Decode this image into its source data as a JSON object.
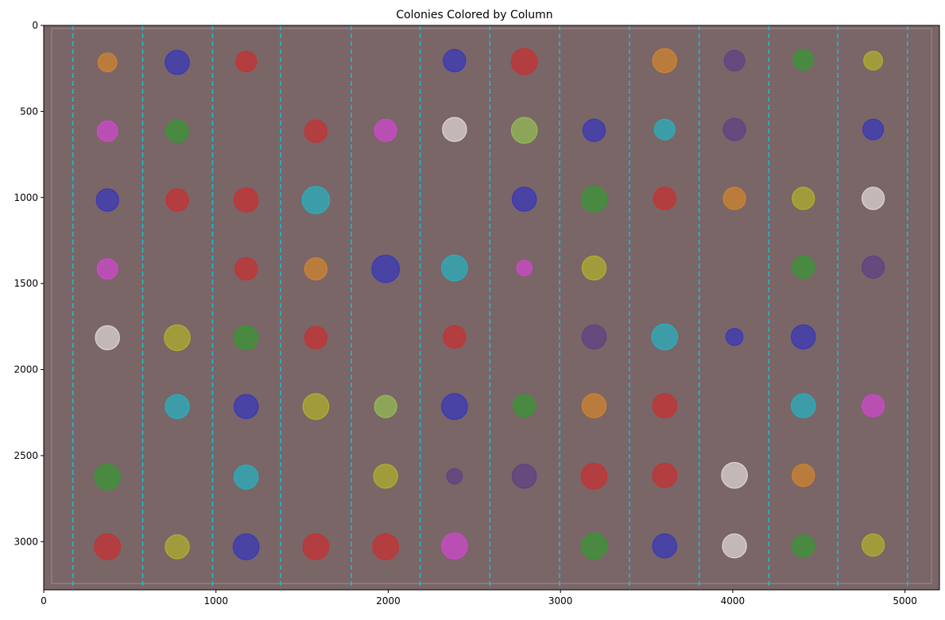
{
  "chart_data": {
    "type": "scatter",
    "title": "Colonies Colored by Column",
    "xlabel": "",
    "ylabel": "",
    "xlim": [
      0,
      5200
    ],
    "ylim": [
      3280,
      0
    ],
    "x_ticks": [
      0,
      1000,
      2000,
      3000,
      4000,
      5000
    ],
    "y_ticks": [
      0,
      500,
      1000,
      1500,
      2000,
      2500,
      3000
    ],
    "y_axis_inverted": true,
    "grid": false,
    "legend": "none",
    "colors": {
      "background_plate": "#7a6567",
      "plate_border": "#a49494",
      "divider_line": "#17becf",
      "red": "#d62728",
      "blue": "#2b2fc9",
      "green": "#2ca02c",
      "olive": "#bcbd22",
      "cyan": "#17becf",
      "orange": "#e08a22",
      "magenta": "#e042e0",
      "purple": "#5a3a8a",
      "lightgreen": "#9acd50",
      "white": "#f2eaea"
    },
    "column_dividers": [
      170,
      575,
      980,
      1375,
      1785,
      2185,
      2590,
      2995,
      3400,
      3805,
      4210,
      4610,
      5015
    ],
    "colonies": [
      {
        "x": 370,
        "y": 215,
        "r": 55,
        "color": "orange"
      },
      {
        "x": 775,
        "y": 215,
        "r": 70,
        "color": "blue"
      },
      {
        "x": 1175,
        "y": 210,
        "r": 60,
        "color": "red"
      },
      {
        "x": 2385,
        "y": 205,
        "r": 65,
        "color": "blue"
      },
      {
        "x": 2790,
        "y": 210,
        "r": 75,
        "color": "red"
      },
      {
        "x": 3605,
        "y": 205,
        "r": 70,
        "color": "orange"
      },
      {
        "x": 4010,
        "y": 205,
        "r": 60,
        "color": "purple"
      },
      {
        "x": 4410,
        "y": 200,
        "r": 60,
        "color": "green"
      },
      {
        "x": 4815,
        "y": 205,
        "r": 55,
        "color": "olive"
      },
      {
        "x": 370,
        "y": 615,
        "r": 60,
        "color": "magenta"
      },
      {
        "x": 775,
        "y": 615,
        "r": 65,
        "color": "green"
      },
      {
        "x": 1580,
        "y": 615,
        "r": 65,
        "color": "red"
      },
      {
        "x": 1985,
        "y": 610,
        "r": 65,
        "color": "magenta"
      },
      {
        "x": 2385,
        "y": 605,
        "r": 70,
        "color": "white"
      },
      {
        "x": 2790,
        "y": 610,
        "r": 75,
        "color": "lightgreen"
      },
      {
        "x": 3195,
        "y": 610,
        "r": 65,
        "color": "blue"
      },
      {
        "x": 3605,
        "y": 605,
        "r": 60,
        "color": "cyan"
      },
      {
        "x": 4010,
        "y": 605,
        "r": 65,
        "color": "purple"
      },
      {
        "x": 4815,
        "y": 605,
        "r": 60,
        "color": "blue"
      },
      {
        "x": 370,
        "y": 1015,
        "r": 65,
        "color": "blue"
      },
      {
        "x": 775,
        "y": 1015,
        "r": 65,
        "color": "red"
      },
      {
        "x": 1175,
        "y": 1015,
        "r": 70,
        "color": "red"
      },
      {
        "x": 1580,
        "y": 1015,
        "r": 80,
        "color": "cyan"
      },
      {
        "x": 2790,
        "y": 1010,
        "r": 70,
        "color": "blue"
      },
      {
        "x": 3195,
        "y": 1010,
        "r": 75,
        "color": "green"
      },
      {
        "x": 3605,
        "y": 1005,
        "r": 65,
        "color": "red"
      },
      {
        "x": 4010,
        "y": 1005,
        "r": 65,
        "color": "orange"
      },
      {
        "x": 4410,
        "y": 1005,
        "r": 65,
        "color": "olive"
      },
      {
        "x": 4815,
        "y": 1005,
        "r": 65,
        "color": "white"
      },
      {
        "x": 370,
        "y": 1415,
        "r": 60,
        "color": "magenta"
      },
      {
        "x": 1175,
        "y": 1415,
        "r": 65,
        "color": "red"
      },
      {
        "x": 1580,
        "y": 1415,
        "r": 65,
        "color": "orange"
      },
      {
        "x": 1985,
        "y": 1415,
        "r": 80,
        "color": "blue"
      },
      {
        "x": 2385,
        "y": 1410,
        "r": 75,
        "color": "cyan"
      },
      {
        "x": 2790,
        "y": 1410,
        "r": 45,
        "color": "magenta"
      },
      {
        "x": 3195,
        "y": 1410,
        "r": 70,
        "color": "olive"
      },
      {
        "x": 4410,
        "y": 1405,
        "r": 65,
        "color": "green"
      },
      {
        "x": 4815,
        "y": 1405,
        "r": 65,
        "color": "purple"
      },
      {
        "x": 370,
        "y": 1815,
        "r": 70,
        "color": "white"
      },
      {
        "x": 775,
        "y": 1815,
        "r": 75,
        "color": "olive"
      },
      {
        "x": 1175,
        "y": 1815,
        "r": 70,
        "color": "green"
      },
      {
        "x": 1580,
        "y": 1815,
        "r": 65,
        "color": "red"
      },
      {
        "x": 2385,
        "y": 1810,
        "r": 65,
        "color": "red"
      },
      {
        "x": 3195,
        "y": 1810,
        "r": 70,
        "color": "purple"
      },
      {
        "x": 3605,
        "y": 1810,
        "r": 75,
        "color": "cyan"
      },
      {
        "x": 4010,
        "y": 1810,
        "r": 50,
        "color": "blue"
      },
      {
        "x": 4410,
        "y": 1810,
        "r": 70,
        "color": "blue"
      },
      {
        "x": 775,
        "y": 2215,
        "r": 70,
        "color": "cyan"
      },
      {
        "x": 1175,
        "y": 2215,
        "r": 70,
        "color": "blue"
      },
      {
        "x": 1580,
        "y": 2215,
        "r": 75,
        "color": "olive"
      },
      {
        "x": 1985,
        "y": 2215,
        "r": 65,
        "color": "lightgreen"
      },
      {
        "x": 2385,
        "y": 2215,
        "r": 75,
        "color": "blue"
      },
      {
        "x": 2790,
        "y": 2210,
        "r": 65,
        "color": "green"
      },
      {
        "x": 3195,
        "y": 2210,
        "r": 70,
        "color": "orange"
      },
      {
        "x": 3605,
        "y": 2210,
        "r": 70,
        "color": "red"
      },
      {
        "x": 4410,
        "y": 2210,
        "r": 70,
        "color": "cyan"
      },
      {
        "x": 4815,
        "y": 2210,
        "r": 65,
        "color": "magenta"
      },
      {
        "x": 370,
        "y": 2625,
        "r": 75,
        "color": "green"
      },
      {
        "x": 1175,
        "y": 2625,
        "r": 70,
        "color": "cyan"
      },
      {
        "x": 1985,
        "y": 2620,
        "r": 70,
        "color": "olive"
      },
      {
        "x": 2385,
        "y": 2620,
        "r": 45,
        "color": "purple"
      },
      {
        "x": 2790,
        "y": 2620,
        "r": 70,
        "color": "purple"
      },
      {
        "x": 3195,
        "y": 2620,
        "r": 75,
        "color": "red"
      },
      {
        "x": 3605,
        "y": 2615,
        "r": 70,
        "color": "red"
      },
      {
        "x": 4010,
        "y": 2615,
        "r": 75,
        "color": "white"
      },
      {
        "x": 4410,
        "y": 2615,
        "r": 65,
        "color": "orange"
      },
      {
        "x": 370,
        "y": 3030,
        "r": 75,
        "color": "red"
      },
      {
        "x": 775,
        "y": 3030,
        "r": 70,
        "color": "olive"
      },
      {
        "x": 1175,
        "y": 3030,
        "r": 75,
        "color": "blue"
      },
      {
        "x": 1580,
        "y": 3030,
        "r": 75,
        "color": "red"
      },
      {
        "x": 1985,
        "y": 3030,
        "r": 75,
        "color": "red"
      },
      {
        "x": 2385,
        "y": 3025,
        "r": 75,
        "color": "magenta"
      },
      {
        "x": 3195,
        "y": 3025,
        "r": 75,
        "color": "green"
      },
      {
        "x": 3605,
        "y": 3025,
        "r": 70,
        "color": "blue"
      },
      {
        "x": 4010,
        "y": 3025,
        "r": 70,
        "color": "white"
      },
      {
        "x": 4410,
        "y": 3025,
        "r": 65,
        "color": "green"
      },
      {
        "x": 4815,
        "y": 3020,
        "r": 65,
        "color": "olive"
      }
    ]
  }
}
